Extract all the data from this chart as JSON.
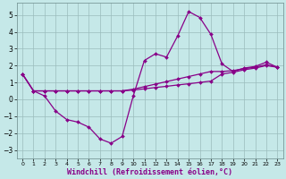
{
  "background_color": "#c5e8e8",
  "grid_color": "#9bbcbc",
  "line_color": "#880088",
  "marker": "D",
  "marker_size": 2.0,
  "xlabel": "Windchill (Refroidissement éolien,°C)",
  "xlabel_fontsize": 6.0,
  "ylim": [
    -3.5,
    5.7
  ],
  "xlim": [
    -0.5,
    23.5
  ],
  "yticks": [
    -3,
    -2,
    -1,
    0,
    1,
    2,
    3,
    4,
    5
  ],
  "xticks": [
    0,
    1,
    2,
    3,
    4,
    5,
    6,
    7,
    8,
    9,
    10,
    11,
    12,
    13,
    14,
    15,
    16,
    17,
    18,
    19,
    20,
    21,
    22,
    23
  ],
  "series": [
    {
      "x": [
        0,
        1,
        2,
        3,
        4,
        5,
        6,
        7,
        8,
        9,
        10,
        11,
        12,
        13,
        14,
        15,
        16,
        17,
        18,
        19,
        20,
        21,
        22,
        23
      ],
      "y": [
        1.5,
        0.5,
        0.5,
        0.5,
        0.5,
        0.5,
        0.5,
        0.5,
        0.5,
        0.5,
        0.55,
        0.62,
        0.7,
        0.77,
        0.85,
        0.92,
        1.0,
        1.08,
        1.5,
        1.6,
        1.75,
        1.85,
        2.0,
        1.9
      ],
      "has_markers": false
    },
    {
      "x": [
        0,
        1,
        2,
        3,
        4,
        5,
        6,
        7,
        8,
        9,
        10,
        11,
        12,
        13,
        14,
        15,
        16,
        17,
        18,
        19,
        20,
        21,
        22,
        23
      ],
      "y": [
        1.5,
        0.5,
        0.5,
        0.5,
        0.5,
        0.5,
        0.5,
        0.5,
        0.5,
        0.5,
        0.6,
        0.75,
        0.9,
        1.05,
        1.2,
        1.35,
        1.5,
        1.65,
        1.65,
        1.7,
        1.82,
        1.9,
        2.05,
        1.9
      ],
      "has_markers": false
    },
    {
      "x": [
        0,
        1,
        2,
        3,
        4,
        5,
        6,
        7,
        8,
        9,
        10,
        11,
        12,
        13,
        14,
        15,
        16,
        17,
        18,
        19,
        20,
        21,
        22,
        23
      ],
      "y": [
        1.5,
        0.5,
        0.2,
        -0.7,
        -1.2,
        -1.35,
        -1.65,
        -2.35,
        -2.6,
        -2.2,
        0.2,
        2.3,
        2.7,
        2.5,
        3.75,
        5.2,
        4.85,
        3.85,
        2.1,
        1.65,
        1.85,
        1.95,
        2.2,
        1.9
      ],
      "has_markers": true
    }
  ]
}
